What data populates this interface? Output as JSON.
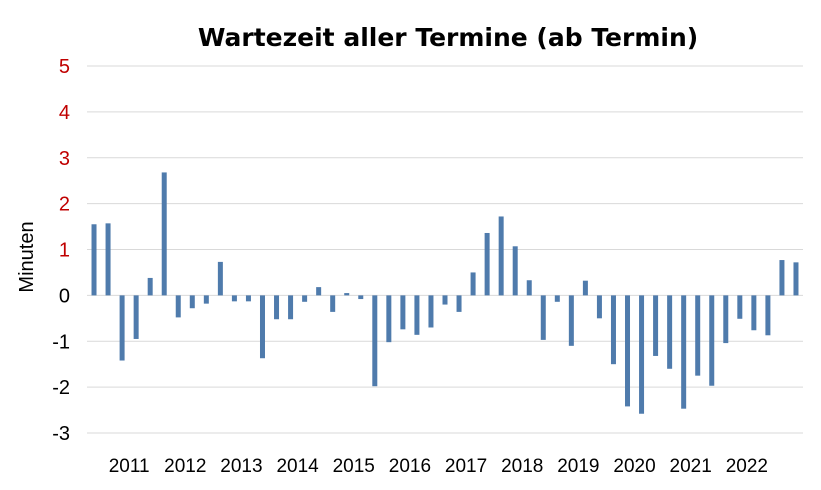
{
  "chart_data": {
    "type": "bar",
    "title": "Wartezeit aller Termine (ab Termin)",
    "ylabel": "Minuten",
    "xlabel": "",
    "ylim": [
      -3,
      5
    ],
    "yticks": [
      5,
      4,
      3,
      2,
      1,
      0,
      -1,
      -2,
      -3
    ],
    "year_labels": [
      "2011",
      "2012",
      "2013",
      "2014",
      "2015",
      "2016",
      "2017",
      "2018",
      "2019",
      "2020",
      "2021",
      "2022"
    ],
    "periods_per_year": 4,
    "first_year_offset": 1,
    "values": [
      1.55,
      1.57,
      -1.42,
      -0.95,
      0.38,
      2.68,
      -0.48,
      -0.28,
      -0.18,
      0.73,
      -0.13,
      -0.13,
      -1.37,
      -0.52,
      -0.52,
      -0.14,
      0.18,
      -0.36,
      0.05,
      -0.08,
      -1.98,
      -1.02,
      -0.74,
      -0.86,
      -0.7,
      -0.2,
      -0.36,
      0.5,
      1.36,
      1.72,
      1.07,
      0.33,
      -0.97,
      -0.14,
      -1.1,
      0.32,
      -0.5,
      -1.5,
      -2.42,
      -2.58,
      -1.32,
      -1.6,
      -2.47,
      -1.75,
      -1.97,
      -1.04,
      -0.51,
      -0.76,
      -0.87,
      0.77,
      0.72
    ],
    "grid": true,
    "legend": "none",
    "colors": {
      "bar": "#4f7bac",
      "grid": "#d9d9d9",
      "tick_positive": "#c00000",
      "tick_other": "#000000"
    }
  }
}
